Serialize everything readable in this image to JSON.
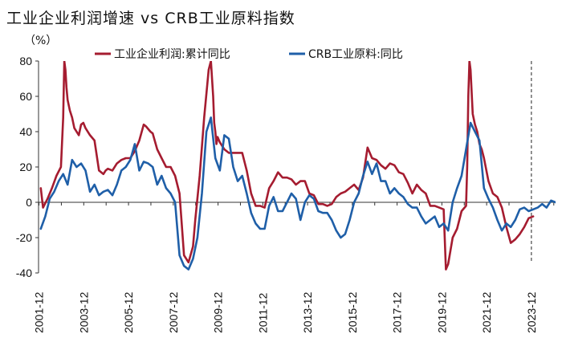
{
  "chart_data": {
    "type": "line",
    "title": "工业企业利润增速 vs CRB工业原料指数",
    "unit": "（%）",
    "ylim": [
      -40,
      80
    ],
    "yticks": [
      -40,
      -20,
      0,
      20,
      40,
      60,
      80
    ],
    "xlim": [
      2001.9,
      2025.0
    ],
    "xtick_labels": [
      "2001-12",
      "2003-12",
      "2005-12",
      "2007-12",
      "2009-12",
      "2011-12",
      "2013-12",
      "2015-12",
      "2017-12",
      "2019-12",
      "2021-12",
      "2023-12"
    ],
    "xtick_values": [
      2001.92,
      2003.92,
      2005.92,
      2007.92,
      2009.92,
      2011.92,
      2013.92,
      2015.92,
      2017.92,
      2019.92,
      2021.92,
      2023.92
    ],
    "vline_x": 2023.92,
    "series": [
      {
        "name": "工业企业利润:累计同比",
        "color": "#A51C30",
        "x": [
          2002.0,
          2002.1,
          2002.3,
          2002.5,
          2002.7,
          2002.9,
          2003.0,
          2003.05,
          2003.1,
          2003.15,
          2003.2,
          2003.3,
          2003.4,
          2003.5,
          2003.7,
          2003.8,
          2003.9,
          2004.0,
          2004.2,
          2004.4,
          2004.6,
          2004.8,
          2004.9,
          2005.0,
          2005.2,
          2005.4,
          2005.6,
          2005.8,
          2006.0,
          2006.2,
          2006.4,
          2006.6,
          2006.7,
          2006.9,
          2007.0,
          2007.2,
          2007.4,
          2007.6,
          2007.8,
          2008.0,
          2008.2,
          2008.4,
          2008.6,
          2008.8,
          2008.9,
          2009.1,
          2009.3,
          2009.5,
          2009.6,
          2009.7,
          2009.75,
          2009.8,
          2009.85,
          2009.9,
          2010.0,
          2010.2,
          2010.4,
          2010.6,
          2010.8,
          2011.0,
          2011.2,
          2011.4,
          2011.6,
          2011.8,
          2012.0,
          2012.2,
          2012.4,
          2012.6,
          2012.8,
          2013.0,
          2013.2,
          2013.4,
          2013.6,
          2013.8,
          2014.0,
          2014.2,
          2014.4,
          2014.6,
          2014.8,
          2015.0,
          2015.2,
          2015.4,
          2015.6,
          2015.8,
          2016.0,
          2016.2,
          2016.4,
          2016.6,
          2016.8,
          2017.0,
          2017.2,
          2017.4,
          2017.6,
          2017.8,
          2018.0,
          2018.2,
          2018.4,
          2018.6,
          2018.8,
          2019.0,
          2019.2,
          2019.4,
          2019.6,
          2019.8,
          2020.0,
          2020.1,
          2020.2,
          2020.4,
          2020.6,
          2020.8,
          2021.0,
          2021.05,
          2021.1,
          2021.15,
          2021.2,
          2021.3,
          2021.4,
          2021.5,
          2021.6,
          2021.7,
          2021.8,
          2022.0,
          2022.2,
          2022.4,
          2022.6,
          2022.8,
          2023.0,
          2023.2,
          2023.4,
          2023.6,
          2023.8,
          2024.0
        ],
        "values": [
          8,
          -3,
          2,
          8,
          15,
          20,
          48,
          80,
          75,
          65,
          58,
          52,
          48,
          42,
          38,
          44,
          45,
          42,
          38,
          35,
          18,
          16,
          18,
          19,
          18,
          22,
          24,
          25,
          25,
          29,
          35,
          44,
          43,
          40,
          39,
          30,
          25,
          20,
          20,
          15,
          5,
          -30,
          -34,
          -25,
          -10,
          15,
          48,
          75,
          80,
          60,
          45,
          40,
          33,
          37,
          34,
          30,
          28,
          28,
          28,
          28,
          18,
          5,
          -2,
          -2,
          -3,
          8,
          12,
          17,
          14,
          14,
          13,
          10,
          12,
          12,
          5,
          4,
          -1,
          -1,
          -2,
          -1,
          3,
          5,
          6,
          8,
          10,
          7,
          14,
          31,
          25,
          24,
          21,
          19,
          22,
          21,
          17,
          16,
          11,
          5,
          10,
          7,
          5,
          -2,
          -2,
          -3,
          -4,
          -38,
          -35,
          -20,
          -15,
          -5,
          -2,
          20,
          60,
          80,
          75,
          50,
          44,
          40,
          33,
          30,
          25,
          12,
          5,
          3,
          -3,
          -14,
          -23,
          -21,
          -18,
          -14,
          -9,
          -8
        ],
        "end_x": 2024.0
      },
      {
        "name": "CRB工业原料:同比",
        "color": "#1F5FA8",
        "x": [
          2002.0,
          2002.2,
          2002.4,
          2002.6,
          2002.8,
          2003.0,
          2003.2,
          2003.4,
          2003.6,
          2003.8,
          2004.0,
          2004.2,
          2004.4,
          2004.6,
          2004.8,
          2005.0,
          2005.2,
          2005.4,
          2005.6,
          2005.8,
          2006.0,
          2006.2,
          2006.4,
          2006.6,
          2006.8,
          2007.0,
          2007.2,
          2007.4,
          2007.6,
          2007.8,
          2008.0,
          2008.2,
          2008.4,
          2008.6,
          2008.8,
          2009.0,
          2009.2,
          2009.4,
          2009.6,
          2009.8,
          2010.0,
          2010.2,
          2010.4,
          2010.6,
          2010.8,
          2011.0,
          2011.2,
          2011.4,
          2011.6,
          2011.8,
          2012.0,
          2012.2,
          2012.4,
          2012.6,
          2012.8,
          2013.0,
          2013.2,
          2013.4,
          2013.6,
          2013.8,
          2014.0,
          2014.2,
          2014.4,
          2014.6,
          2014.8,
          2015.0,
          2015.2,
          2015.4,
          2015.6,
          2015.8,
          2016.0,
          2016.2,
          2016.4,
          2016.6,
          2016.8,
          2017.0,
          2017.2,
          2017.4,
          2017.6,
          2017.8,
          2018.0,
          2018.2,
          2018.4,
          2018.6,
          2018.8,
          2019.0,
          2019.2,
          2019.4,
          2019.6,
          2019.8,
          2020.0,
          2020.2,
          2020.4,
          2020.6,
          2020.8,
          2021.0,
          2021.2,
          2021.4,
          2021.6,
          2021.8,
          2022.0,
          2022.2,
          2022.4,
          2022.6,
          2022.8,
          2023.0,
          2023.2,
          2023.4,
          2023.6,
          2023.8,
          2024.0,
          2024.2,
          2024.4,
          2024.6,
          2024.8,
          2025.0
        ],
        "values": [
          -15,
          -8,
          2,
          6,
          12,
          16,
          10,
          24,
          20,
          22,
          18,
          6,
          10,
          4,
          6,
          7,
          4,
          10,
          18,
          20,
          24,
          33,
          18,
          23,
          22,
          20,
          10,
          15,
          8,
          5,
          0,
          -30,
          -36,
          -38,
          -32,
          -20,
          5,
          40,
          48,
          25,
          18,
          38,
          36,
          20,
          12,
          15,
          5,
          -6,
          -12,
          -15,
          -15,
          -2,
          3,
          -5,
          -5,
          0,
          5,
          2,
          -10,
          0,
          4,
          2,
          -5,
          -6,
          -6,
          -10,
          -16,
          -20,
          -18,
          -10,
          0,
          5,
          15,
          23,
          16,
          22,
          12,
          12,
          5,
          8,
          5,
          3,
          -1,
          -3,
          -3,
          -8,
          -12,
          -10,
          -8,
          -14,
          -12,
          -16,
          0,
          8,
          15,
          30,
          45,
          40,
          35,
          8,
          2,
          -3,
          -10,
          -16,
          -12,
          -14,
          -10,
          -4,
          -3,
          -5,
          -4,
          -3,
          -1,
          -3,
          1,
          0
        ]
      }
    ]
  }
}
